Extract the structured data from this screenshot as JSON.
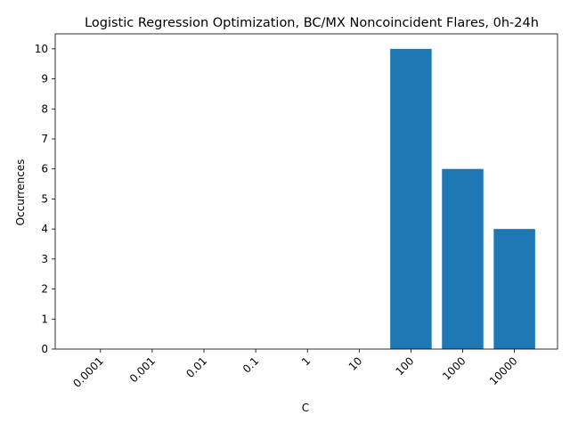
{
  "chart_data": {
    "type": "bar",
    "title": "Logistic Regression Optimization, BC/MX Noncoincident Flares, 0h-24h",
    "xlabel": "C",
    "ylabel": "Occurrences",
    "categories": [
      "0.0001",
      "0.001",
      "0.01",
      "0.1",
      "1",
      "10",
      "100",
      "1000",
      "10000"
    ],
    "values": [
      0,
      0,
      0,
      0,
      0,
      0,
      10,
      6,
      4
    ],
    "ylim": [
      0,
      10.5
    ],
    "yticks": [
      0,
      1,
      2,
      3,
      4,
      5,
      6,
      7,
      8,
      9,
      10
    ],
    "bar_color": "#1f77b4",
    "grid": false,
    "legend": "none",
    "xtick_rotation": "45 degrees"
  }
}
